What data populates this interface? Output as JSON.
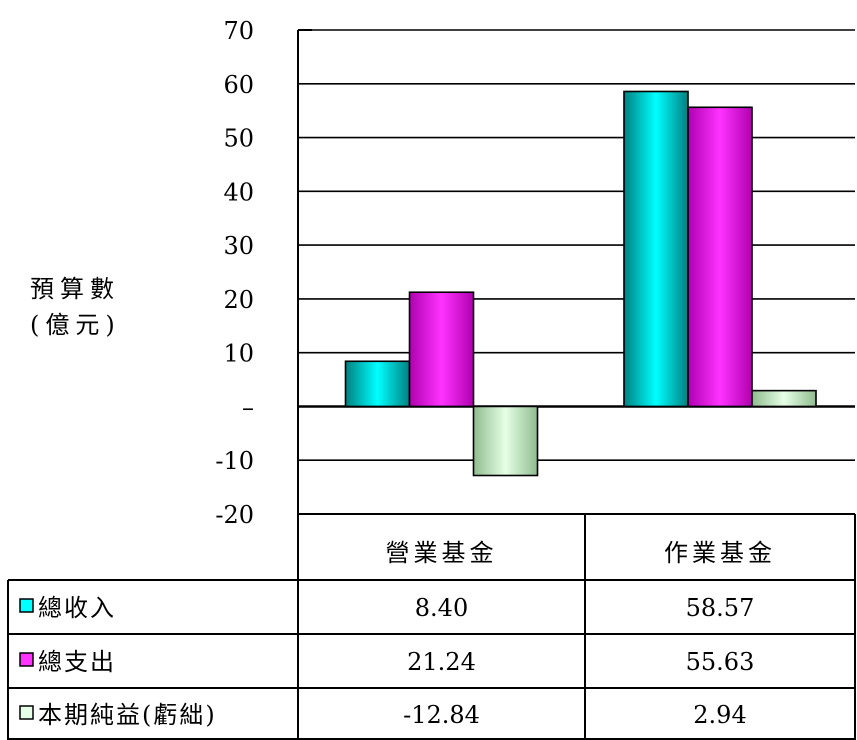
{
  "chart_data": {
    "type": "bar",
    "ylabel_lines": [
      "預算數",
      "(億元)"
    ],
    "categories": [
      "營業基金",
      "作業基金"
    ],
    "ylim": [
      -20,
      70
    ],
    "yticks": [
      {
        "value": 70,
        "label": "70"
      },
      {
        "value": 60,
        "label": "60"
      },
      {
        "value": 50,
        "label": "50"
      },
      {
        "value": 40,
        "label": "40"
      },
      {
        "value": 30,
        "label": "30"
      },
      {
        "value": 20,
        "label": "20"
      },
      {
        "value": 10,
        "label": "10"
      },
      {
        "value": 0,
        "label": "–"
      },
      {
        "value": -10,
        "label": "-10"
      },
      {
        "value": -20,
        "label": "-20"
      }
    ],
    "grid": true,
    "legend": "table-left",
    "series": [
      {
        "name": "總收入",
        "values": [
          8.4,
          58.57
        ],
        "labels": [
          "8.40",
          "58.57"
        ],
        "colors": {
          "edge": "#008080",
          "mid": "#00FFFF"
        }
      },
      {
        "name": "總支出",
        "values": [
          21.24,
          55.63
        ],
        "labels": [
          "21.24",
          "55.63"
        ],
        "colors": {
          "edge": "#B000B0",
          "mid": "#FF33FF"
        }
      },
      {
        "name": "本期純益(虧絀)",
        "values": [
          -12.84,
          2.94
        ],
        "labels": [
          "-12.84",
          "2.94"
        ],
        "colors": {
          "edge": "#8FBC8F",
          "mid": "#E6FFE6"
        }
      }
    ]
  }
}
